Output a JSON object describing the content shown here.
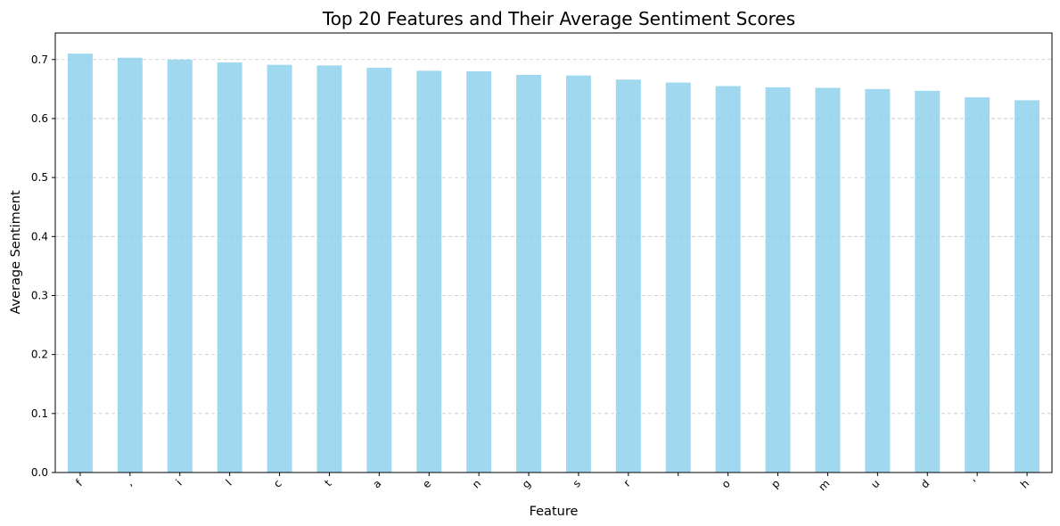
{
  "chart_data": {
    "type": "bar",
    "title": "Top 20 Features and Their Average Sentiment Scores",
    "xlabel": "Feature",
    "ylabel": "Average Sentiment",
    "categories": [
      "f",
      ",",
      "i",
      "l",
      "c",
      "t",
      "a",
      "e",
      "n",
      "g",
      "s",
      "r",
      " ",
      "o",
      "p",
      "m",
      "u",
      "d",
      "'",
      "h"
    ],
    "values": [
      0.71,
      0.703,
      0.7,
      0.695,
      0.691,
      0.69,
      0.686,
      0.681,
      0.68,
      0.674,
      0.673,
      0.666,
      0.661,
      0.655,
      0.653,
      0.652,
      0.65,
      0.647,
      0.636,
      0.631
    ],
    "ylim": [
      0,
      0.745
    ],
    "yticks": [
      0.0,
      0.1,
      0.2,
      0.3,
      0.4,
      0.5,
      0.6,
      0.7
    ],
    "ytick_labels": [
      "0.0",
      "0.1",
      "0.2",
      "0.3",
      "0.4",
      "0.5",
      "0.6",
      "0.7"
    ],
    "grid": "y-dashed",
    "bar_color": "#87ceeb",
    "bar_alpha": 0.8
  }
}
